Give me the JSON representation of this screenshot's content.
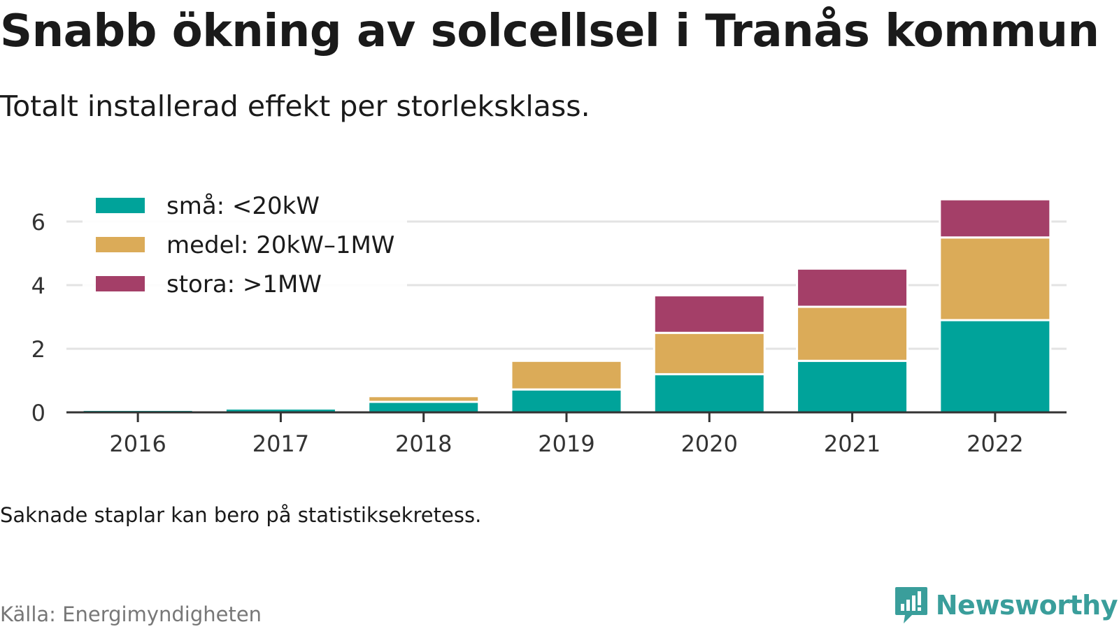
{
  "header": {
    "title": "Snabb ökning av solcellsel i Tranås kommun",
    "subtitle": "Totalt installerad effekt per storleksklass."
  },
  "footer": {
    "note": "Saknade staplar kan bero på statistiksekretess.",
    "source": "Källa: Energimyndigheten",
    "brand": "Newsworthy"
  },
  "chart_data": {
    "type": "bar",
    "stacked": true,
    "categories": [
      "2016",
      "2017",
      "2018",
      "2019",
      "2020",
      "2021",
      "2022"
    ],
    "series": [
      {
        "name": "små: <20kW",
        "color": "#00a39a",
        "values": [
          0.08,
          0.12,
          0.33,
          0.72,
          1.2,
          1.62,
          2.9
        ]
      },
      {
        "name": "medel: 20kW–1MW",
        "color": "#dbab58",
        "values": [
          0.02,
          0.05,
          0.18,
          0.9,
          1.3,
          1.7,
          2.6
        ]
      },
      {
        "name": "stora: >1MW",
        "color": "#a43f68",
        "values": [
          0,
          0,
          0,
          0,
          1.18,
          1.2,
          1.2
        ]
      }
    ],
    "yticks": [
      0,
      2,
      4,
      6
    ],
    "ylim": [
      0,
      7
    ],
    "grid": true,
    "legend_position": "top-left",
    "xlabel": "",
    "ylabel": ""
  }
}
